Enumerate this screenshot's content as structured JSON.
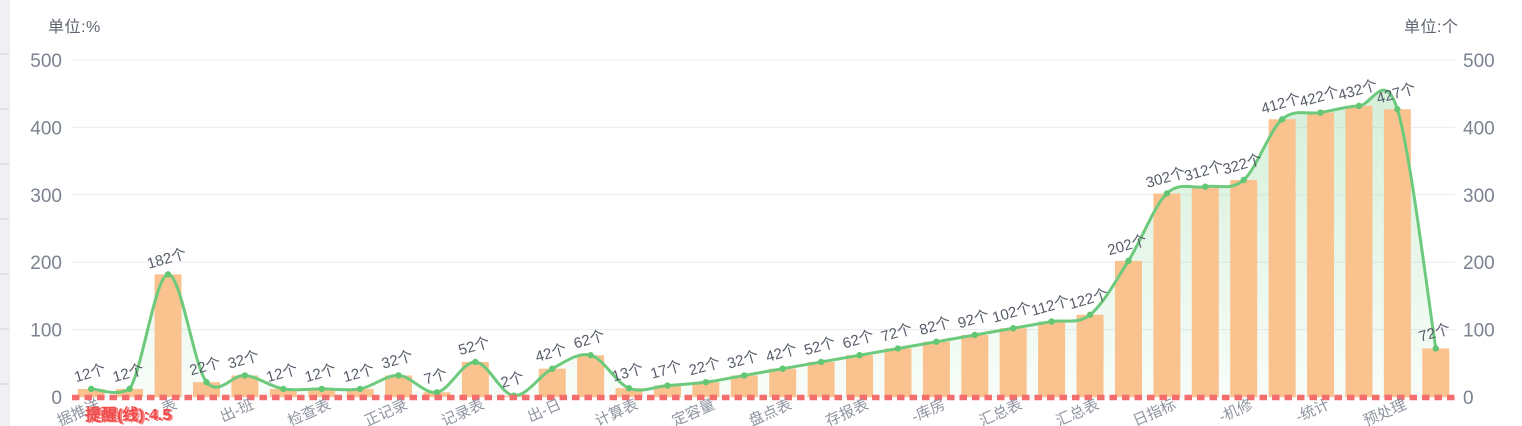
{
  "chart_data": {
    "type": "bar",
    "subtype": "bar-with-smooth-line-area-overlay",
    "left_axis": {
      "name": "单位:%",
      "ticks": [
        500,
        400,
        300,
        200,
        100,
        0
      ],
      "ylim": [
        0,
        500
      ]
    },
    "right_axis": {
      "name": "单位:个",
      "ticks": [
        500,
        400,
        300,
        200,
        100,
        0
      ],
      "ylim": [
        0,
        500
      ]
    },
    "grid": true,
    "legend_position": "none",
    "categories": [
      "据推送",
      "",
      "表",
      "",
      "出-班",
      "",
      "检查表",
      "",
      "正记录",
      "",
      "记录表",
      "",
      "出-日",
      "",
      "计算表",
      "",
      "定容量",
      "",
      "盘点表",
      "",
      "存报表",
      "",
      "-库房",
      "",
      "汇总表",
      "",
      "汇总表",
      "",
      "日指标",
      "",
      "-机修",
      "",
      "-统计",
      "",
      "预处理",
      ""
    ],
    "values": [
      12,
      12,
      182,
      22,
      32,
      12,
      12,
      12,
      32,
      7,
      52,
      2,
      42,
      62,
      13,
      17,
      22,
      32,
      42,
      52,
      62,
      72,
      82,
      92,
      102,
      112,
      122,
      202,
      302,
      312,
      322,
      412,
      422,
      432,
      427,
      72
    ],
    "value_suffix": "个",
    "markline": {
      "label": "提醒(线):4.5",
      "value": 4.5
    },
    "colors": {
      "bar": "#f9c28e",
      "line": "#6dca7c",
      "dot": "#63c673",
      "area_top": "rgba(122,206,137,0.32)",
      "area_bottom": "rgba(122,206,137,0.05)",
      "markline": "#f56c6c",
      "markline_label": "#f04a4a",
      "grid": "#e9ecf2",
      "tick_label": "#7b8290",
      "axis_name": "#5d6570",
      "value_label": "#565c68",
      "x_label": "#8f94a0"
    }
  }
}
